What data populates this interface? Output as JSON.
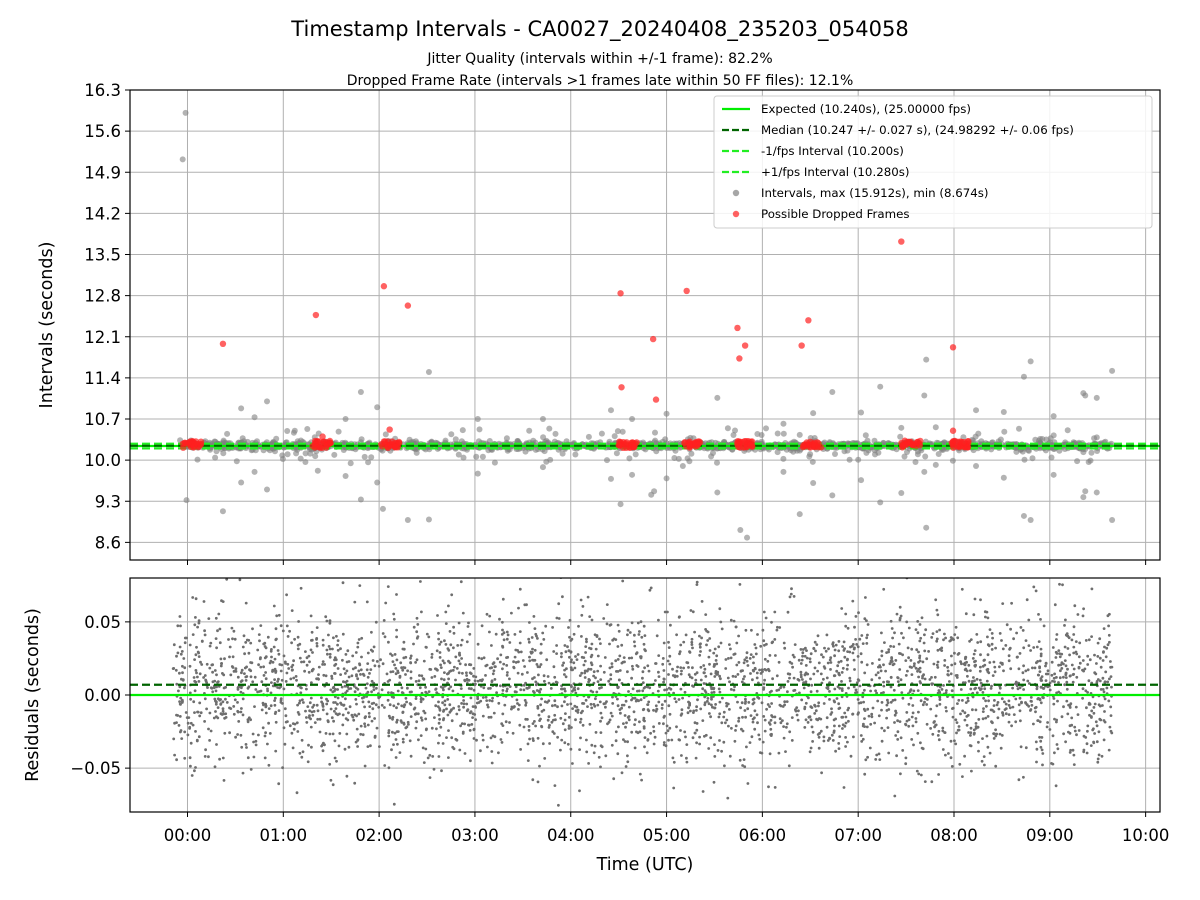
{
  "figure": {
    "title": "Timestamp Intervals - CA0027_20240408_235203_054058",
    "subtitle_line1": "Jitter Quality (intervals within +/-1 frame): 82.2%",
    "subtitle_line2": "Dropped Frame Rate (intervals >1 frames late within 50 FF files): 12.1%",
    "xlabel": "Time (UTC)"
  },
  "colors": {
    "expected": "#00ee00",
    "median": "#006400",
    "fps_band": "#22ee22",
    "intervals": "#808080",
    "dropped": "#ff2020",
    "grid": "#b0b0b0"
  },
  "chart_data": [
    {
      "type": "scatter",
      "ylabel": "Intervals (seconds)",
      "xlim_hours": [
        -0.6,
        10.15
      ],
      "ylim": [
        8.3,
        16.3
      ],
      "x_ticks": [
        0,
        1,
        2,
        3,
        4,
        5,
        6,
        7,
        8,
        9,
        10
      ],
      "x_tick_labels": [
        "00:00",
        "01:00",
        "02:00",
        "03:00",
        "04:00",
        "05:00",
        "06:00",
        "07:00",
        "08:00",
        "09:00",
        "10:00"
      ],
      "y_ticks": [
        8.6,
        9.3,
        10.0,
        10.7,
        11.4,
        12.1,
        12.8,
        13.5,
        14.2,
        14.9,
        15.6,
        16.3
      ],
      "y_tick_labels": [
        "8.6",
        "9.3",
        "10.0",
        "10.7",
        "11.4",
        "12.1",
        "12.8",
        "13.5",
        "14.2",
        "14.9",
        "15.6",
        "16.3"
      ],
      "grid": true,
      "legend_position": "upper-right",
      "lines": [
        {
          "name": "Expected (10.240s), (25.00000 fps)",
          "y": 10.24,
          "style": "solid",
          "color_key": "expected"
        },
        {
          "name": "Median (10.247 +/- 0.027 s), (24.98292 +/- 0.06 fps)",
          "y": 10.247,
          "style": "dashed",
          "color_key": "median"
        },
        {
          "name": "-1/fps Interval (10.200s)",
          "y": 10.2,
          "style": "dashed",
          "color_key": "fps_band"
        },
        {
          "name": "+1/fps Interval (10.280s)",
          "y": 10.28,
          "style": "dashed",
          "color_key": "fps_band"
        }
      ],
      "series": [
        {
          "name": "Intervals, max (15.912s), min (8.674s)",
          "marker": "circle",
          "color_key": "intervals",
          "outliers": [
            {
              "x": -0.05,
              "y": 15.12
            },
            {
              "x": -0.02,
              "y": 15.91
            },
            {
              "x": -0.01,
              "y": 9.32
            },
            {
              "x": 0.37,
              "y": 9.13
            },
            {
              "x": 0.56,
              "y": 10.88
            },
            {
              "x": 0.56,
              "y": 9.62
            },
            {
              "x": 0.7,
              "y": 10.73
            },
            {
              "x": 0.7,
              "y": 9.8
            },
            {
              "x": 0.83,
              "y": 11.0
            },
            {
              "x": 0.83,
              "y": 9.5
            },
            {
              "x": 1.12,
              "y": 10.5
            },
            {
              "x": 1.36,
              "y": 9.82
            },
            {
              "x": 1.65,
              "y": 10.7
            },
            {
              "x": 1.65,
              "y": 9.73
            },
            {
              "x": 1.81,
              "y": 11.16
            },
            {
              "x": 1.81,
              "y": 9.33
            },
            {
              "x": 1.98,
              "y": 10.9
            },
            {
              "x": 1.98,
              "y": 9.62
            },
            {
              "x": 2.04,
              "y": 9.17
            },
            {
              "x": 2.3,
              "y": 8.98
            },
            {
              "x": 2.52,
              "y": 11.5
            },
            {
              "x": 2.52,
              "y": 8.99
            },
            {
              "x": 3.03,
              "y": 10.7
            },
            {
              "x": 3.03,
              "y": 9.77
            },
            {
              "x": 3.71,
              "y": 10.7
            },
            {
              "x": 3.71,
              "y": 9.88
            },
            {
              "x": 4.42,
              "y": 10.85
            },
            {
              "x": 4.42,
              "y": 9.68
            },
            {
              "x": 4.52,
              "y": 9.25
            },
            {
              "x": 4.64,
              "y": 10.7
            },
            {
              "x": 4.64,
              "y": 9.75
            },
            {
              "x": 4.84,
              "y": 9.41
            },
            {
              "x": 4.87,
              "y": 9.47
            },
            {
              "x": 5.0,
              "y": 10.79
            },
            {
              "x": 5.0,
              "y": 9.69
            },
            {
              "x": 5.17,
              "y": 9.9
            },
            {
              "x": 5.53,
              "y": 11.06
            },
            {
              "x": 5.53,
              "y": 9.45
            },
            {
              "x": 5.77,
              "y": 8.81
            },
            {
              "x": 5.84,
              "y": 8.68
            },
            {
              "x": 6.22,
              "y": 10.62
            },
            {
              "x": 6.22,
              "y": 9.8
            },
            {
              "x": 6.39,
              "y": 10.43
            },
            {
              "x": 6.39,
              "y": 9.08
            },
            {
              "x": 6.53,
              "y": 9.61
            },
            {
              "x": 6.53,
              "y": 10.8
            },
            {
              "x": 6.73,
              "y": 11.16
            },
            {
              "x": 6.73,
              "y": 9.4
            },
            {
              "x": 7.03,
              "y": 10.81
            },
            {
              "x": 7.03,
              "y": 9.66
            },
            {
              "x": 7.23,
              "y": 11.25
            },
            {
              "x": 7.23,
              "y": 9.28
            },
            {
              "x": 7.45,
              "y": 10.55
            },
            {
              "x": 7.45,
              "y": 9.44
            },
            {
              "x": 7.69,
              "y": 11.1
            },
            {
              "x": 7.69,
              "y": 9.8
            },
            {
              "x": 7.71,
              "y": 11.71
            },
            {
              "x": 7.71,
              "y": 8.85
            },
            {
              "x": 7.81,
              "y": 10.56
            },
            {
              "x": 7.81,
              "y": 9.92
            },
            {
              "x": 8.23,
              "y": 10.85
            },
            {
              "x": 8.23,
              "y": 9.9
            },
            {
              "x": 8.52,
              "y": 10.82
            },
            {
              "x": 8.52,
              "y": 9.7
            },
            {
              "x": 8.73,
              "y": 11.42
            },
            {
              "x": 8.73,
              "y": 9.05
            },
            {
              "x": 8.8,
              "y": 11.68
            },
            {
              "x": 8.8,
              "y": 8.98
            },
            {
              "x": 9.04,
              "y": 10.75
            },
            {
              "x": 9.04,
              "y": 9.75
            },
            {
              "x": 9.35,
              "y": 11.14
            },
            {
              "x": 9.35,
              "y": 9.37
            },
            {
              "x": 9.37,
              "y": 11.1
            },
            {
              "x": 9.37,
              "y": 9.47
            },
            {
              "x": 9.49,
              "y": 11.06
            },
            {
              "x": 9.49,
              "y": 9.45
            },
            {
              "x": 9.65,
              "y": 11.52
            },
            {
              "x": 9.65,
              "y": 8.98
            }
          ]
        },
        {
          "name": "Possible Dropped Frames",
          "marker": "circle",
          "color_key": "dropped",
          "points": [
            {
              "x": 0.37,
              "y": 11.98
            },
            {
              "x": 1.34,
              "y": 12.47
            },
            {
              "x": 2.05,
              "y": 12.96
            },
            {
              "x": 2.3,
              "y": 12.63
            },
            {
              "x": 2.11,
              "y": 10.52
            },
            {
              "x": 1.41,
              "y": 10.4
            },
            {
              "x": 4.52,
              "y": 12.84
            },
            {
              "x": 4.53,
              "y": 11.24
            },
            {
              "x": 4.86,
              "y": 12.06
            },
            {
              "x": 4.89,
              "y": 11.03
            },
            {
              "x": 5.21,
              "y": 12.88
            },
            {
              "x": 5.74,
              "y": 12.25
            },
            {
              "x": 5.76,
              "y": 11.73
            },
            {
              "x": 5.82,
              "y": 11.95
            },
            {
              "x": 6.41,
              "y": 11.95
            },
            {
              "x": 6.48,
              "y": 12.38
            },
            {
              "x": 7.45,
              "y": 13.72
            },
            {
              "x": 7.99,
              "y": 11.92
            },
            {
              "x": 7.99,
              "y": 10.5
            }
          ],
          "clusters_x": [
            0.05,
            1.4,
            2.12,
            4.6,
            5.25,
            5.82,
            6.52,
            7.55,
            8.07
          ]
        }
      ]
    },
    {
      "type": "scatter",
      "ylabel": "Residuals (seconds)",
      "xlim_hours": [
        -0.6,
        10.15
      ],
      "ylim": [
        -0.08,
        0.08
      ],
      "y_ticks": [
        -0.05,
        0.0,
        0.05
      ],
      "y_tick_labels": [
        "−0.05",
        "0.00",
        "0.05"
      ],
      "grid": true,
      "lines": [
        {
          "name": "Expected",
          "y": 0.0,
          "style": "solid",
          "color_key": "expected"
        },
        {
          "name": "Median",
          "y": 0.007,
          "style": "dashed",
          "color_key": "median"
        }
      ],
      "series": [
        {
          "name": "Residuals",
          "marker": "dot",
          "color_key": "intervals",
          "x_range": [
            -0.15,
            9.65
          ],
          "center": 0.005,
          "spread": 0.035,
          "count": 3400
        }
      ]
    }
  ]
}
